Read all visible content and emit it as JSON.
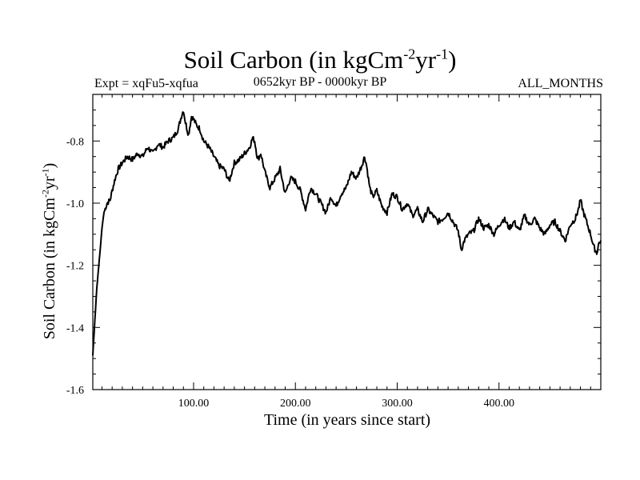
{
  "chart_data": {
    "type": "line",
    "title": "Soil Carbon (in kgCm-2yr-1)",
    "title_parts": {
      "main": "Soil Carbon (in kgCm",
      "sup1": "-2",
      "mid": "yr",
      "sup2": "-1",
      "end": ")"
    },
    "subtitle_left": "Expt = xqFu5-xqfua",
    "subtitle_center": "0652kyr BP - 0000kyr BP",
    "subtitle_right": "ALL_MONTHS",
    "xlabel": "Time (in years since start)",
    "ylabel": "Soil Carbon (in kgCm-2yr-1)",
    "ylabel_parts": {
      "main": "Soil Carbon (in kgCm",
      "sup1": "-2",
      "mid": "yr",
      "sup2": "-1",
      "end": ")"
    },
    "xlim": [
      1,
      500
    ],
    "ylim": [
      -1.6,
      -0.65
    ],
    "xticks": [
      100,
      200,
      300,
      400
    ],
    "xtick_labels": [
      "100.00",
      "200.00",
      "300.00",
      "400.00"
    ],
    "yticks": [
      -1.6,
      -1.4,
      -1.2,
      -1.0,
      -0.8
    ],
    "ytick_labels": [
      "-1.6",
      "-1.4",
      "-1.2",
      "-1.0",
      "-0.8"
    ],
    "series": [
      {
        "name": "Soil Carbon",
        "x": [
          1,
          3,
          5,
          8,
          10,
          12,
          15,
          18,
          20,
          23,
          26,
          30,
          35,
          40,
          45,
          50,
          55,
          60,
          65,
          70,
          75,
          80,
          85,
          88,
          90,
          92,
          95,
          98,
          100,
          103,
          106,
          110,
          115,
          120,
          125,
          130,
          135,
          140,
          145,
          150,
          155,
          158,
          160,
          163,
          166,
          170,
          175,
          180,
          185,
          190,
          195,
          200,
          205,
          210,
          215,
          220,
          225,
          230,
          235,
          240,
          245,
          250,
          255,
          260,
          265,
          268,
          270,
          273,
          276,
          280,
          285,
          290,
          295,
          300,
          305,
          310,
          315,
          320,
          325,
          330,
          335,
          340,
          345,
          350,
          355,
          360,
          363,
          366,
          370,
          375,
          380,
          385,
          390,
          395,
          400,
          405,
          410,
          415,
          420,
          425,
          430,
          435,
          440,
          445,
          450,
          455,
          460,
          465,
          470,
          475,
          478,
          480,
          483,
          486,
          490,
          493,
          496,
          498,
          500
        ],
        "values": [
          -1.49,
          -1.38,
          -1.27,
          -1.16,
          -1.08,
          -1.03,
          -1.0,
          -0.99,
          -0.96,
          -0.92,
          -0.89,
          -0.87,
          -0.85,
          -0.86,
          -0.84,
          -0.85,
          -0.82,
          -0.84,
          -0.81,
          -0.82,
          -0.8,
          -0.79,
          -0.76,
          -0.72,
          -0.7,
          -0.74,
          -0.78,
          -0.72,
          -0.73,
          -0.75,
          -0.76,
          -0.8,
          -0.82,
          -0.85,
          -0.88,
          -0.89,
          -0.93,
          -0.87,
          -0.86,
          -0.84,
          -0.82,
          -0.79,
          -0.8,
          -0.86,
          -0.84,
          -0.9,
          -0.95,
          -0.92,
          -0.89,
          -0.97,
          -0.92,
          -0.93,
          -0.96,
          -1.02,
          -0.95,
          -0.97,
          -1.0,
          -1.03,
          -0.98,
          -1.01,
          -0.97,
          -0.95,
          -0.9,
          -0.92,
          -0.88,
          -0.85,
          -0.88,
          -0.95,
          -0.98,
          -0.96,
          -1.01,
          -1.03,
          -0.97,
          -0.98,
          -1.02,
          -1.0,
          -1.04,
          -1.02,
          -1.06,
          -1.02,
          -1.04,
          -1.06,
          -1.05,
          -1.03,
          -1.06,
          -1.09,
          -1.15,
          -1.12,
          -1.1,
          -1.09,
          -1.05,
          -1.08,
          -1.07,
          -1.1,
          -1.07,
          -1.05,
          -1.08,
          -1.06,
          -1.09,
          -1.04,
          -1.07,
          -1.05,
          -1.08,
          -1.1,
          -1.07,
          -1.06,
          -1.09,
          -1.12,
          -1.07,
          -1.05,
          -1.02,
          -0.99,
          -1.03,
          -1.06,
          -1.1,
          -1.14,
          -1.16,
          -1.13,
          -1.12
        ]
      }
    ]
  }
}
